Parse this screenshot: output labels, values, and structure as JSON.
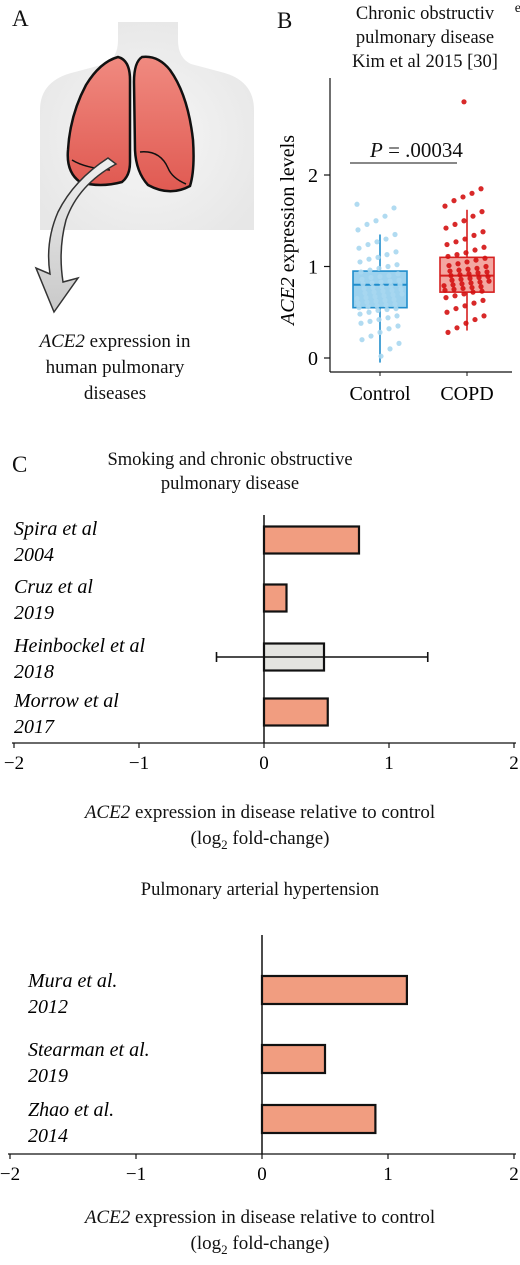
{
  "panel_a": {
    "letter": "A",
    "caption": {
      "gene": "ACE2",
      "rest_line1": " expression in",
      "line2": "human pulmonary",
      "line3": "diseases"
    }
  },
  "panel_b": {
    "letter": "B",
    "title_lines": [
      "Chronic obstructiv",
      "pulmonary disease",
      "Kim et al 2015 [30]"
    ],
    "title_clipped_glyph": "e",
    "p_label": "P",
    "p_value": " = .00034"
  },
  "panel_c": {
    "letter": "C",
    "title_lines": [
      "Smoking and chronic obstructive",
      "pulmonary disease"
    ],
    "xlabel": {
      "gene": "ACE2",
      "rest": " expression in disease relative to control",
      "line2_pre": "(log",
      "line2_sub": "2",
      "line2_post": " fold-change)"
    }
  },
  "panel_d": {
    "title": "Pulmonary arterial hypertension",
    "xlabel": {
      "gene": "ACE2",
      "rest": " expression in disease relative to control",
      "line2_pre": "(log",
      "line2_sub": "2",
      "line2_post": " fold-change)"
    }
  },
  "colors": {
    "control_light": "#a9d7ef",
    "control_box": "#7cc3e8",
    "control_line": "#1f8dcc",
    "copd_light": "#f4a6a6",
    "copd_box": "#ef8a82",
    "copd_line": "#d62020",
    "copd_point": "#d41212",
    "bar_salmon": "#f19d80",
    "bar_grey": "#e4e4e0",
    "lung_fill": "#e9685d",
    "body_fill": "#f0f0f0"
  },
  "chart_data": [
    {
      "type": "box",
      "id": "copd_kim",
      "ylabel": "ACE2 expression levels",
      "ylim": [
        -0.1,
        3
      ],
      "yticks": [
        0,
        1,
        2
      ],
      "categories": [
        "Control",
        "COPD"
      ],
      "boxes": [
        {
          "name": "Control",
          "min": -0.05,
          "q1": 0.55,
          "median": 0.8,
          "q3": 0.95,
          "max": 1.35
        },
        {
          "name": "COPD",
          "min": 0.3,
          "q1": 0.72,
          "median": 0.9,
          "q3": 1.1,
          "max": 1.62
        }
      ],
      "points": {
        "Control": [
          1.68,
          1.64,
          1.55,
          1.5,
          1.46,
          1.4,
          1.35,
          1.3,
          1.27,
          1.24,
          1.2,
          1.16,
          1.13,
          1.1,
          1.08,
          1.05,
          1.02,
          1.0,
          0.98,
          0.96,
          0.94,
          0.92,
          0.9,
          0.89,
          0.88,
          0.86,
          0.85,
          0.84,
          0.83,
          0.82,
          0.81,
          0.8,
          0.79,
          0.78,
          0.77,
          0.76,
          0.75,
          0.74,
          0.73,
          0.72,
          0.71,
          0.7,
          0.69,
          0.68,
          0.67,
          0.66,
          0.65,
          0.64,
          0.63,
          0.62,
          0.61,
          0.6,
          0.59,
          0.58,
          0.57,
          0.56,
          0.55,
          0.54,
          0.53,
          0.52,
          0.5,
          0.48,
          0.46,
          0.44,
          0.42,
          0.4,
          0.38,
          0.35,
          0.32,
          0.28,
          0.24,
          0.2,
          0.16,
          0.1,
          0.02
        ],
        "COPD": [
          2.8,
          1.85,
          1.8,
          1.76,
          1.72,
          1.66,
          1.6,
          1.55,
          1.5,
          1.46,
          1.42,
          1.38,
          1.34,
          1.3,
          1.27,
          1.24,
          1.21,
          1.18,
          1.15,
          1.13,
          1.11,
          1.09,
          1.07,
          1.05,
          1.03,
          1.01,
          1.0,
          0.98,
          0.97,
          0.96,
          0.95,
          0.94,
          0.93,
          0.92,
          0.91,
          0.9,
          0.89,
          0.88,
          0.87,
          0.86,
          0.85,
          0.84,
          0.83,
          0.82,
          0.81,
          0.8,
          0.79,
          0.78,
          0.77,
          0.76,
          0.75,
          0.74,
          0.73,
          0.72,
          0.7,
          0.68,
          0.66,
          0.63,
          0.6,
          0.57,
          0.54,
          0.5,
          0.46,
          0.42,
          0.38,
          0.33,
          0.28
        ]
      },
      "annotation": "P = .00034"
    },
    {
      "type": "bar",
      "orientation": "horizontal",
      "id": "smoking_copd",
      "title": "Smoking and chronic obstructive pulmonary disease",
      "xlim": [
        -2,
        2
      ],
      "xticks": [
        "−2",
        "−1",
        "0",
        "1",
        "2"
      ],
      "categories": [
        {
          "label": "Spira et al",
          "year": "2004"
        },
        {
          "label": "Cruz et al",
          "year": "2019"
        },
        {
          "label": "Heinbockel et al",
          "year": "2018"
        },
        {
          "label": "Morrow et al",
          "year": "2017"
        }
      ],
      "values": [
        0.76,
        0.18,
        0.48,
        0.51
      ],
      "error_low": [
        null,
        null,
        -0.38,
        null
      ],
      "error_high": [
        null,
        null,
        1.31,
        null
      ],
      "bar_color_keys": [
        "bar_salmon",
        "bar_salmon",
        "bar_grey",
        "bar_salmon"
      ],
      "xlabel": "ACE2 expression in disease relative to control (log2 fold-change)"
    },
    {
      "type": "bar",
      "orientation": "horizontal",
      "id": "pah",
      "title": "Pulmonary arterial hypertension",
      "xlim": [
        -2,
        2
      ],
      "xticks": [
        "−2",
        "−1",
        "0",
        "1",
        "2"
      ],
      "categories": [
        {
          "label": "Mura et al.",
          "year": "2012"
        },
        {
          "label": "Stearman et al.",
          "year": "2019"
        },
        {
          "label": "Zhao et al.",
          "year": "2014"
        }
      ],
      "values": [
        1.15,
        0.5,
        0.9
      ],
      "bar_color_keys": [
        "bar_salmon",
        "bar_salmon",
        "bar_salmon"
      ],
      "xlabel": "ACE2 expression in disease relative to control (log2 fold-change)"
    }
  ]
}
